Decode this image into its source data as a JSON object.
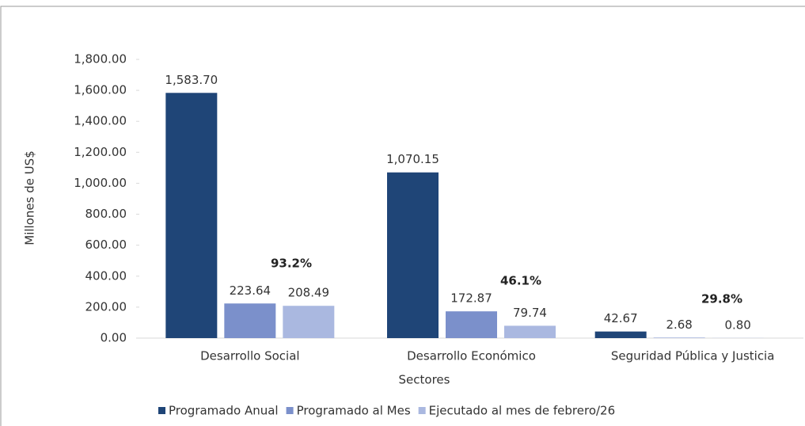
{
  "chart_data": {
    "type": "bar",
    "categories": [
      "Desarrollo Social",
      "Desarrollo Económico",
      "Seguridad Pública y Justicia"
    ],
    "series": [
      {
        "name": "Programado Anual",
        "color": "#1f4577",
        "values": [
          1583.7,
          1070.15,
          42.67
        ],
        "value_labels": [
          "1,583.70",
          "1,070.15",
          "42.67"
        ]
      },
      {
        "name": "Programado al Mes",
        "color": "#7b90cb",
        "values": [
          223.64,
          172.87,
          2.68
        ],
        "value_labels": [
          "223.64",
          "172.87",
          "2.68"
        ]
      },
      {
        "name": "Ejecutado al mes de febrero/26",
        "color": "#aab8e0",
        "values": [
          208.49,
          79.74,
          0.8
        ],
        "value_labels": [
          "208.49",
          "79.74",
          "0.80"
        ]
      }
    ],
    "annotations": [
      "93.2%",
      "46.1%",
      "29.8%"
    ],
    "xlabel": "Sectores",
    "ylabel": "Millones de US$",
    "ylim": [
      0,
      1800
    ],
    "yticks": [
      {
        "value": 0,
        "label": "0.00"
      },
      {
        "value": 200,
        "label": "200.00"
      },
      {
        "value": 400,
        "label": "400.00"
      },
      {
        "value": 600,
        "label": "600.00"
      },
      {
        "value": 800,
        "label": "800.00"
      },
      {
        "value": 1000,
        "label": "1,000.00"
      },
      {
        "value": 1200,
        "label": "1,200.00"
      },
      {
        "value": 1400,
        "label": "1,400.00"
      },
      {
        "value": 1600,
        "label": "1,600.00"
      },
      {
        "value": 1800,
        "label": "1,800.00"
      }
    ],
    "grid": false,
    "legend": "bottom"
  }
}
